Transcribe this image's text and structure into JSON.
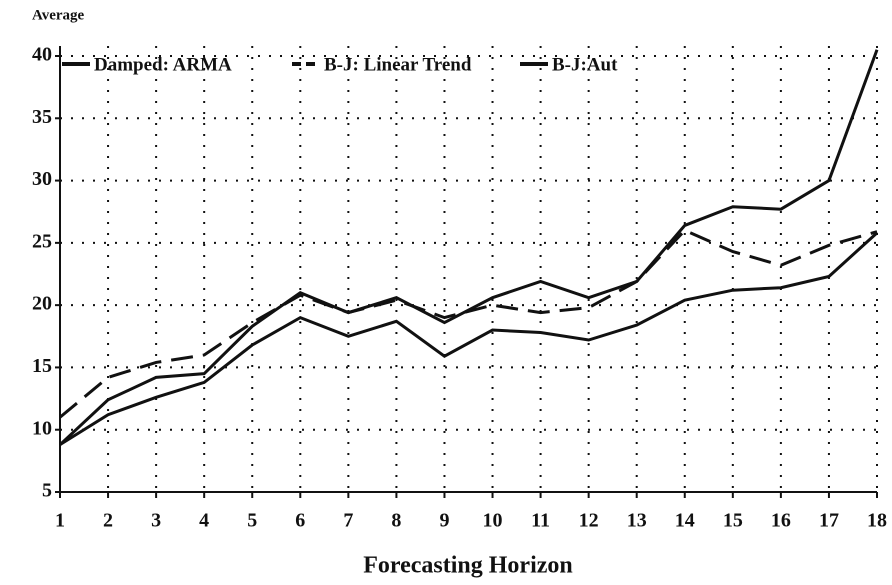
{
  "chart_data": {
    "type": "line",
    "y_label": "Average",
    "x_label": "Forecasting Horizon",
    "x": [
      1,
      2,
      3,
      4,
      5,
      6,
      7,
      8,
      9,
      10,
      11,
      12,
      13,
      14,
      15,
      16,
      17,
      18
    ],
    "xlim": [
      1,
      18
    ],
    "xticks": [
      1,
      2,
      3,
      4,
      5,
      6,
      7,
      8,
      9,
      10,
      11,
      12,
      13,
      14,
      15,
      16,
      17,
      18
    ],
    "ylim": [
      5,
      40
    ],
    "yticks": [
      5,
      10,
      15,
      20,
      25,
      30,
      35,
      40
    ],
    "grid": true,
    "legend": "top",
    "series": [
      {
        "name": "Damped: ARMA",
        "color": "#111111",
        "dash": "solid",
        "values": [
          8.8,
          11.2,
          12.6,
          13.8,
          16.8,
          19.0,
          17.5,
          18.7,
          15.9,
          18.0,
          17.8,
          17.2,
          18.4,
          20.4,
          21.2,
          21.4,
          22.3,
          25.8
        ]
      },
      {
        "name": "B-J: Linear Trend",
        "color": "#111111",
        "dash": "dashed",
        "values": [
          11.0,
          14.2,
          15.4,
          16.0,
          18.6,
          20.8,
          19.4,
          20.4,
          19.0,
          20.0,
          19.4,
          19.8,
          21.9,
          26.0,
          24.3,
          23.2,
          24.8,
          25.9
        ]
      },
      {
        "name": "B-J:Aut",
        "color": "#111111",
        "dash": "solid",
        "values": [
          8.8,
          12.4,
          14.2,
          14.5,
          18.3,
          21.0,
          19.4,
          20.6,
          18.6,
          20.6,
          21.9,
          20.6,
          21.9,
          26.4,
          27.9,
          27.7,
          30.0,
          40.5
        ]
      }
    ]
  }
}
